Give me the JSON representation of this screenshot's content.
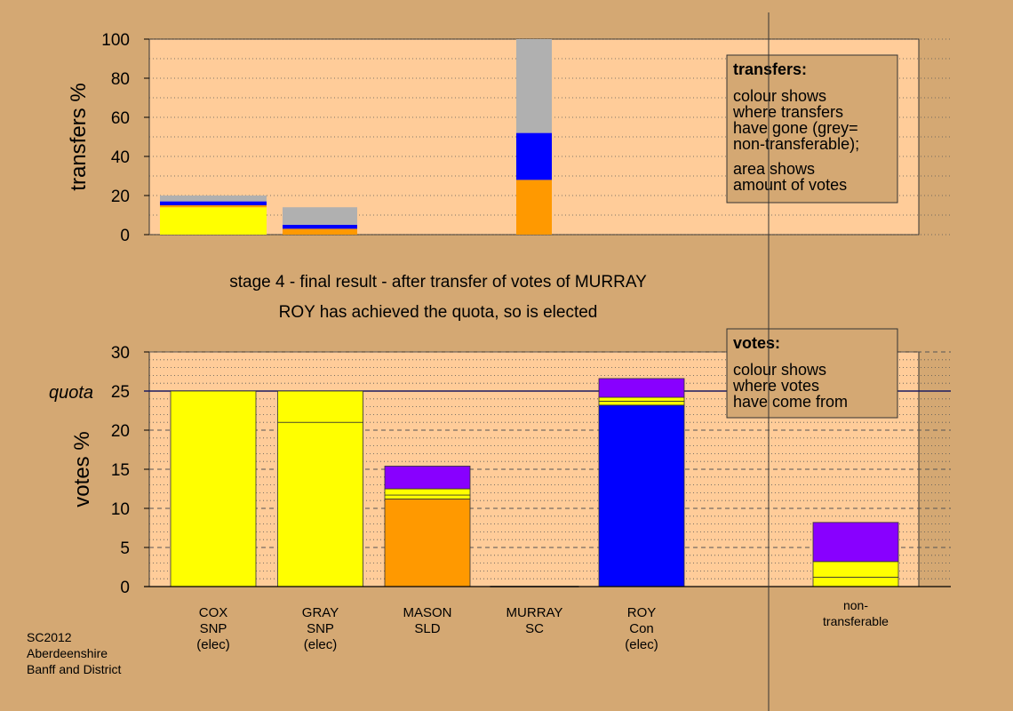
{
  "colors": {
    "background": "#d4a873",
    "plot_bg": "#ffcc99",
    "yellow": "#ffff00",
    "orange": "#ff9900",
    "blue": "#0000ff",
    "purple": "#8800ff",
    "grey": "#b0b0b0",
    "legend_bg": "#d4a873"
  },
  "source_lines": [
    "SC2012",
    "Aberdeenshire",
    "Banff and District"
  ],
  "chart_data": [
    {
      "type": "bar",
      "stacked": true,
      "ylabel": "transfers %",
      "ylim": [
        0,
        100
      ],
      "yticks": [
        0,
        20,
        40,
        60,
        80,
        100
      ],
      "legend": {
        "title": "transfers:",
        "lines": [
          "colour shows",
          "where transfers",
          "have gone (grey=",
          "non-transferable);",
          "area shows",
          "amount of votes"
        ]
      },
      "bars": [
        {
          "from": "COX",
          "width_share": 20,
          "segments": [
            {
              "color": "yellow",
              "value": 14
            },
            {
              "color": "orange",
              "value": 1
            },
            {
              "color": "blue",
              "value": 2
            },
            {
              "color": "grey",
              "value": 3
            }
          ]
        },
        {
          "from": "GRAY",
          "width_share": 14,
          "segments": [
            {
              "color": "orange",
              "value": 3
            },
            {
              "color": "blue",
              "value": 2
            },
            {
              "color": "grey",
              "value": 9
            }
          ]
        },
        {
          "from": "MURRAY",
          "width_share": 7,
          "segments": [
            {
              "color": "orange",
              "value": 28
            },
            {
              "color": "blue",
              "value": 24
            },
            {
              "color": "grey",
              "value": 48
            }
          ]
        }
      ]
    },
    {
      "type": "bar",
      "stacked": true,
      "title_lines": [
        "stage 4 - final result - after transfer of votes of MURRAY",
        "ROY has achieved the quota, so is elected"
      ],
      "ylabel": "votes %",
      "ylim": [
        0,
        30
      ],
      "yticks": [
        0,
        5,
        10,
        15,
        20,
        25,
        30
      ],
      "quota": 25,
      "quota_label": "quota",
      "legend": {
        "title": "votes:",
        "lines": [
          "colour shows",
          "where votes",
          "have come from"
        ]
      },
      "categories": [
        {
          "lines": [
            "COX",
            "SNP",
            "(elec)"
          ],
          "segments": [
            {
              "color": "yellow",
              "value": 25
            }
          ]
        },
        {
          "lines": [
            "GRAY",
            "SNP",
            "(elec)"
          ],
          "segments": [
            {
              "color": "yellow",
              "value": 21
            },
            {
              "color": "yellow",
              "value": 4
            }
          ]
        },
        {
          "lines": [
            "MASON",
            "SLD"
          ],
          "segments": [
            {
              "color": "orange",
              "value": 11.2
            },
            {
              "color": "yellow",
              "value": 0.5
            },
            {
              "color": "yellow",
              "value": 0.8
            },
            {
              "color": "purple",
              "value": 2.9
            }
          ]
        },
        {
          "lines": [
            "MURRAY",
            "SC"
          ],
          "segments": []
        },
        {
          "lines": [
            "ROY",
            "Con",
            "(elec)"
          ],
          "segments": [
            {
              "color": "blue",
              "value": 23.2
            },
            {
              "color": "yellow",
              "value": 0.5
            },
            {
              "color": "yellow",
              "value": 0.5
            },
            {
              "color": "purple",
              "value": 2.4
            }
          ]
        },
        {
          "lines": [],
          "segments": []
        },
        {
          "lines": [
            "non-",
            "transferable"
          ],
          "segments": [
            {
              "color": "yellow",
              "value": 1.2
            },
            {
              "color": "yellow",
              "value": 2
            },
            {
              "color": "purple",
              "value": 5
            }
          ]
        }
      ]
    }
  ]
}
